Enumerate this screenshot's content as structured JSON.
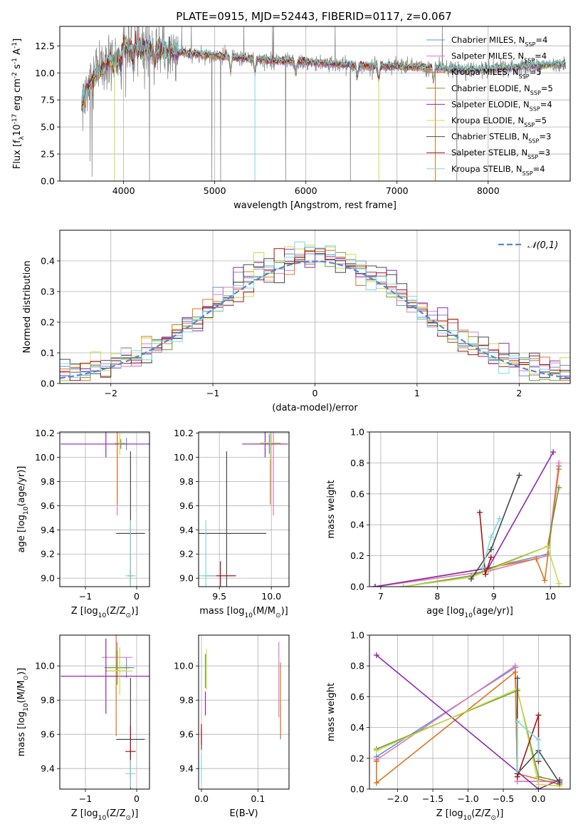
{
  "figure": {
    "title": "PLATE=0915, MJD=52443, FIBERID=0117, z=0.067",
    "models": [
      {
        "name": "Chabrier MILES, N$_{SSP}$=4",
        "color": "#6a8fd6"
      },
      {
        "name": "Salpeter MILES, N$_{SSP}$=4",
        "color": "#e07ab8"
      },
      {
        "name": "Kroupa MILES, N$_{SSP}$=5",
        "color": "#e0731f"
      },
      {
        "name": "Chabrier ELODIE, N$_{SSP}$=5",
        "color": "#6e9a3c"
      },
      {
        "name": "Salpeter ELODIE, N$_{SSP}$=4",
        "color": "#8e2ab0"
      },
      {
        "name": "Kroupa ELODIE, N$_{SSP}$=5",
        "color": "#c7dc4a"
      },
      {
        "name": "Chabrier STELIB, N$_{SSP}$=3",
        "color": "#4a4a4a"
      },
      {
        "name": "Salpeter STELIB, N$_{SSP}$=3",
        "color": "#a31515"
      },
      {
        "name": "Kroupa STELIB, N$_{SSP}$=4",
        "color": "#7fd8e0"
      }
    ]
  },
  "chart_data": [
    {
      "id": "spectrum",
      "type": "line",
      "xlabel": "wavelength [Angstrom, rest frame]",
      "ylabel": "Flux [f$_\\lambda$10$^{-17}$ erg cm$^{-2}$ s$^{-1}$ A$^{-1}$]",
      "xlim": [
        3300,
        8900
      ],
      "ylim": [
        0,
        14.3
      ],
      "xticks": [
        4000,
        5000,
        6000,
        7000,
        8000
      ],
      "yticks": [
        0.0,
        2.5,
        5.0,
        7.5,
        10.0,
        12.5
      ],
      "data_color": "#888888",
      "envelope": {
        "x": [
          3540,
          3600,
          3700,
          3800,
          3900,
          4000,
          4200,
          4500,
          5000,
          5500,
          6000,
          6500,
          7000,
          7400,
          7700,
          8000,
          8400,
          8800
        ],
        "y": [
          7.0,
          8.5,
          10.0,
          10.8,
          11.6,
          12.3,
          12.3,
          12.0,
          11.6,
          11.2,
          11.0,
          10.7,
          10.6,
          10.5,
          10.3,
          10.3,
          10.6,
          10.8
        ]
      },
      "absorption_lines": [
        3890,
        3933,
        3968,
        4102,
        4340,
        5175,
        5441,
        5890,
        6563,
        6800,
        7400
      ]
    },
    {
      "id": "residuals",
      "type": "histogram",
      "xlabel": "(data-model)/error",
      "ylabel": "Normed distribution",
      "xlim": [
        -2.5,
        2.5
      ],
      "ylim": [
        0,
        0.5
      ],
      "xticks": [
        -2,
        -1,
        0,
        1,
        2
      ],
      "yticks": [
        0.0,
        0.1,
        0.2,
        0.3,
        0.4
      ],
      "bin_width": 0.1,
      "reference": {
        "name": "$\\mathcal{N}(0,1)$",
        "color": "#4f8ad1"
      }
    },
    {
      "id": "age-vs-Z",
      "type": "scatter",
      "xlabel": "Z [log$_{10}$(Z/Z$_\\odot$)]",
      "ylabel": "age  [log$_{10}$(age/yr)]",
      "xlim": [
        -1.5,
        0.25
      ],
      "ylim": [
        8.93,
        10.21
      ],
      "xticks": [
        -1,
        0
      ],
      "yticks": [
        9.0,
        9.2,
        9.4,
        9.6,
        9.8,
        10.0,
        10.2
      ],
      "points": [
        {
          "m": 0,
          "x": -0.2,
          "y": 10.11,
          "ex": 0.15,
          "ey": 0.05
        },
        {
          "m": 1,
          "x": -0.38,
          "y": 10.11,
          "ex": 0.05,
          "ey": 0.59
        },
        {
          "m": 2,
          "x": -0.38,
          "y": 10.11,
          "ex": 0.02,
          "ey": 0.5
        },
        {
          "m": 3,
          "x": -0.31,
          "y": 10.11,
          "ex": 0.1,
          "ey": 0.04
        },
        {
          "m": 4,
          "x": -0.6,
          "y": 10.11,
          "ex": 0.88,
          "ey": 0.11
        },
        {
          "m": 5,
          "x": -0.33,
          "y": 10.12,
          "ex": 0.1,
          "ey": 0.1
        },
        {
          "m": 6,
          "x": -0.12,
          "y": 9.37,
          "ex": 0.28,
          "ey": 0.68
        },
        {
          "m": 7,
          "x": -0.12,
          "y": 9.02,
          "ex": 0.05,
          "ey": 0.06
        },
        {
          "m": 8,
          "x": -0.12,
          "y": 9.02,
          "ex": 0.1,
          "ey": 0.46
        }
      ]
    },
    {
      "id": "age-vs-mass",
      "type": "scatter",
      "xlabel": "mass [log$_{10}$(M/M$_\\odot$)]",
      "ylabel": "",
      "xlim": [
        9.3,
        10.17
      ],
      "ylim": [
        8.93,
        10.21
      ],
      "xticks": [
        9.5,
        10.0
      ],
      "yticks": [
        9.0,
        9.2,
        9.4,
        9.6,
        9.8,
        10.0,
        10.2
      ],
      "points": [
        {
          "m": 0,
          "x": 9.98,
          "y": 10.11,
          "ex": 0.15,
          "ey": 0.08
        },
        {
          "m": 1,
          "x": 10.02,
          "y": 10.11,
          "ex": 0.08,
          "ey": 0.59
        },
        {
          "m": 2,
          "x": 9.99,
          "y": 10.11,
          "ex": 0.1,
          "ey": 0.5
        },
        {
          "m": 3,
          "x": 9.99,
          "y": 10.11,
          "ex": 0.1,
          "ey": 0.1
        },
        {
          "m": 4,
          "x": 9.94,
          "y": 10.11,
          "ex": 0.22,
          "ey": 0.11
        },
        {
          "m": 5,
          "x": 9.99,
          "y": 10.12,
          "ex": 0.1,
          "ey": 0.14
        },
        {
          "m": 6,
          "x": 9.57,
          "y": 9.37,
          "ex": 0.38,
          "ey": 0.68
        },
        {
          "m": 7,
          "x": 9.51,
          "y": 9.02,
          "ex": 0.15,
          "ey": 0.12
        },
        {
          "m": 8,
          "x": 9.37,
          "y": 9.02,
          "ex": 0.1,
          "ey": 0.46
        }
      ]
    },
    {
      "id": "weight-vs-age",
      "type": "line",
      "xlabel": "age  [log$_{10}$(age/yr)]",
      "ylabel": "mass weight",
      "xlim": [
        6.8,
        10.35
      ],
      "ylim": [
        0,
        1.0
      ],
      "xticks": [
        7,
        8,
        9,
        10
      ],
      "yticks": [
        0.0,
        0.2,
        0.4,
        0.6,
        0.8,
        1.0
      ],
      "series": [
        {
          "m": 0,
          "x": [
            6.9,
            8.9,
            9.95,
            10.15
          ],
          "y": [
            0.0,
            0.12,
            0.21,
            0.78
          ]
        },
        {
          "m": 1,
          "x": [
            6.9,
            8.9,
            9.95,
            10.15
          ],
          "y": [
            0.0,
            0.1,
            0.2,
            0.8
          ]
        },
        {
          "m": 2,
          "x": [
            6.9,
            8.9,
            9.75,
            9.9,
            10.15
          ],
          "y": [
            0.0,
            0.12,
            0.18,
            0.04,
            0.76
          ]
        },
        {
          "m": 3,
          "x": [
            7.4,
            8.6,
            9.95,
            10.15
          ],
          "y": [
            0.0,
            0.07,
            0.26,
            0.64
          ]
        },
        {
          "m": 4,
          "x": [
            6.9,
            8.9,
            10.05
          ],
          "y": [
            0.0,
            0.12,
            0.87
          ]
        },
        {
          "m": 5,
          "x": [
            7.4,
            8.6,
            9.95,
            10.15
          ],
          "y": [
            0.0,
            0.06,
            0.26,
            0.02
          ]
        },
        {
          "m": 6,
          "x": [
            8.6,
            8.95,
            9.45
          ],
          "y": [
            0.05,
            0.24,
            0.72
          ]
        },
        {
          "m": 7,
          "x": [
            8.75,
            8.85,
            8.95
          ],
          "y": [
            0.48,
            0.08,
            0.19
          ]
        },
        {
          "m": 8,
          "x": [
            8.8,
            8.95,
            9.1
          ],
          "y": [
            0.12,
            0.32,
            0.44
          ]
        }
      ]
    },
    {
      "id": "mass-vs-Z",
      "type": "scatter",
      "xlabel": "Z [log$_{10}$(Z/Z$_\\odot$)]",
      "ylabel": "mass [log$_{10}$(M/M$_\\odot$)]",
      "xlim": [
        -1.5,
        0.25
      ],
      "ylim": [
        9.28,
        10.18
      ],
      "xticks": [
        -1,
        0
      ],
      "yticks": [
        9.4,
        9.6,
        9.8,
        10.0
      ],
      "points": [
        {
          "m": 0,
          "x": -0.2,
          "y": 9.99,
          "ex": 0.15,
          "ey": 0.06
        },
        {
          "m": 1,
          "x": -0.38,
          "y": 10.05,
          "ex": 0.3,
          "ey": 0.09
        },
        {
          "m": 2,
          "x": -0.4,
          "y": 9.97,
          "ex": 0.2,
          "ey": 0.38
        },
        {
          "m": 3,
          "x": -0.38,
          "y": 9.99,
          "ex": 0.25,
          "ey": 0.1
        },
        {
          "m": 4,
          "x": -0.6,
          "y": 9.94,
          "ex": 0.88,
          "ey": 0.22
        },
        {
          "m": 5,
          "x": -0.33,
          "y": 9.97,
          "ex": 0.25,
          "ey": 0.14
        },
        {
          "m": 6,
          "x": -0.12,
          "y": 9.57,
          "ex": 0.28,
          "ey": 0.36
        },
        {
          "m": 7,
          "x": -0.12,
          "y": 9.5,
          "ex": 0.1,
          "ey": 0.15
        },
        {
          "m": 8,
          "x": -0.12,
          "y": 9.37,
          "ex": 0.1,
          "ey": 0.08
        }
      ]
    },
    {
      "id": "mass-vs-ebv",
      "type": "scatter",
      "xlabel": "E(B-V)",
      "ylabel": "",
      "xlim": [
        -0.005,
        0.155
      ],
      "ylim": [
        9.28,
        10.18
      ],
      "xticks": [
        0.0,
        0.1
      ],
      "yticks": [
        9.4,
        9.6,
        9.8,
        10.0
      ],
      "points": [
        {
          "m": 0,
          "x": 0.14,
          "y": 9.67,
          "ex": 0,
          "ey": 0.1
        },
        {
          "m": 1,
          "x": 0.137,
          "y": 9.92,
          "ex": 0,
          "ey": 0.22
        },
        {
          "m": 2,
          "x": 0.14,
          "y": 9.8,
          "ex": 0,
          "ey": 0.22
        },
        {
          "m": 3,
          "x": 0.007,
          "y": 9.97,
          "ex": 0,
          "ey": 0.1
        },
        {
          "m": 4,
          "x": 0.007,
          "y": 9.78,
          "ex": 0,
          "ey": 0.07
        },
        {
          "m": 5,
          "x": 0.009,
          "y": 9.98,
          "ex": 0,
          "ey": 0.12
        },
        {
          "m": 6,
          "x": 0.0,
          "y": 9.57,
          "ex": 0,
          "ey": 0.06
        },
        {
          "m": 7,
          "x": 0.0,
          "y": 9.6,
          "ex": 0,
          "ey": 0.06
        },
        {
          "m": 8,
          "x": 0.0,
          "y": 9.4,
          "ex": 0,
          "ey": 0.08
        }
      ]
    },
    {
      "id": "weight-vs-Z",
      "type": "line",
      "xlabel": "Z [log$_{10}$(Z/Z$_\\odot$)]",
      "ylabel": "mass weight",
      "xlim": [
        -2.4,
        0.45
      ],
      "ylim": [
        0,
        1.0
      ],
      "xticks": [
        -2.0,
        -1.5,
        -1.0,
        -0.5,
        0.0
      ],
      "yticks": [
        0.0,
        0.2,
        0.4,
        0.6,
        0.8,
        1.0
      ],
      "series": [
        {
          "m": 0,
          "x": [
            -2.3,
            -0.33,
            -0.3,
            0.3
          ],
          "y": [
            0.21,
            0.79,
            0.05,
            0.05
          ]
        },
        {
          "m": 1,
          "x": [
            -2.3,
            -0.33,
            -0.3,
            0.3
          ],
          "y": [
            0.19,
            0.8,
            0.05,
            0.05
          ]
        },
        {
          "m": 2,
          "x": [
            -2.3,
            -2.3,
            -0.33,
            -0.3,
            0.3
          ],
          "y": [
            0.18,
            0.04,
            0.76,
            0.1,
            0.03
          ]
        },
        {
          "m": 3,
          "x": [
            -2.3,
            -0.3,
            0.0,
            0.3
          ],
          "y": [
            0.26,
            0.64,
            0.08,
            0.05
          ]
        },
        {
          "m": 4,
          "x": [
            -2.3,
            0.0,
            0.3
          ],
          "y": [
            0.87,
            0.0,
            0.06
          ]
        },
        {
          "m": 5,
          "x": [
            -2.3,
            -0.3,
            0.0,
            0.3
          ],
          "y": [
            0.25,
            0.65,
            0.03,
            0.02
          ]
        },
        {
          "m": 6,
          "x": [
            -0.3,
            -0.3,
            0.0,
            0.3
          ],
          "y": [
            0.72,
            0.1,
            0.25,
            0.04
          ]
        },
        {
          "m": 7,
          "x": [
            -0.3,
            0.0,
            0.0
          ],
          "y": [
            0.08,
            0.48,
            0.18
          ]
        },
        {
          "m": 8,
          "x": [
            -0.3,
            -0.3,
            0.0,
            0.0
          ],
          "y": [
            0.12,
            0.44,
            0.32,
            0.2
          ]
        }
      ]
    }
  ]
}
